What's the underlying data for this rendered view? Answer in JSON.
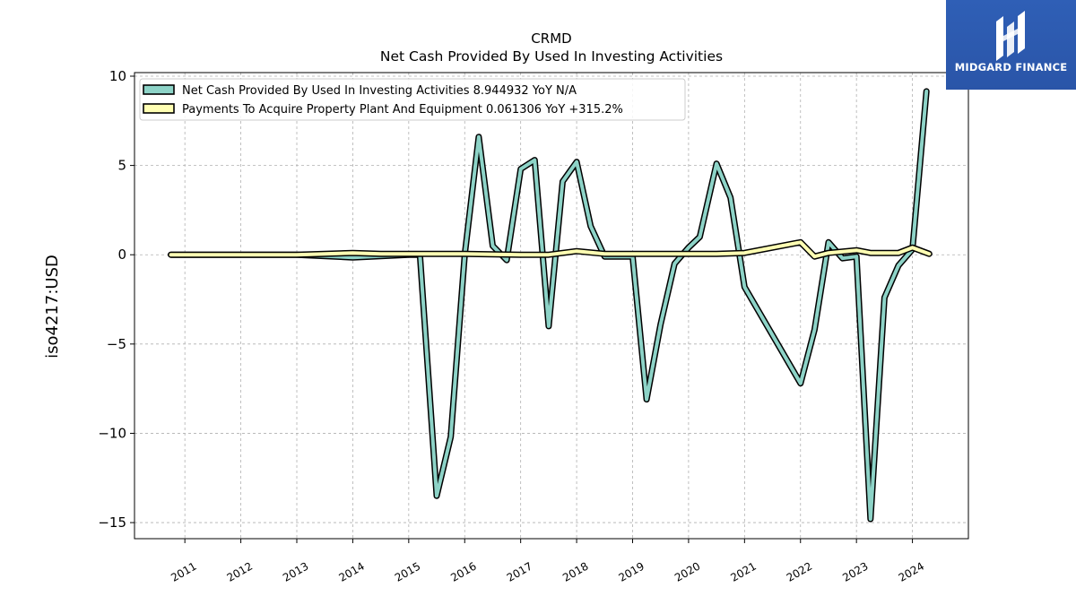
{
  "chart_data": {
    "type": "line",
    "title": "CRMD",
    "subtitle": "Net Cash Provided By Used In Investing Activities",
    "ylabel": "iso4217:USD",
    "xlabel": "",
    "ylim": [
      -15.9,
      10.2
    ],
    "xlim": [
      2010.1,
      2025.0
    ],
    "yticks": [
      10,
      5,
      0,
      -5,
      -10,
      -15
    ],
    "ytick_labels": [
      "10",
      "5",
      "0",
      "−5",
      "−10",
      "−15"
    ],
    "xticks": [
      2011,
      2012,
      2013,
      2014,
      2015,
      2016,
      2017,
      2018,
      2019,
      2020,
      2021,
      2022,
      2023,
      2024
    ],
    "xtick_labels": [
      "2011",
      "2012",
      "2013",
      "2014",
      "2015",
      "2016",
      "2017",
      "2018",
      "2019",
      "2020",
      "2021",
      "2022",
      "2023",
      "2024"
    ],
    "grid": true,
    "legend_position": "top-left",
    "series": [
      {
        "name": "Net Cash Provided By Used In Investing Activities  8.944932 YoY N/A",
        "color": "#8dd3c7",
        "points": [
          [
            2010.75,
            0.0
          ],
          [
            2013.0,
            0.0
          ],
          [
            2014.0,
            -0.15
          ],
          [
            2015.0,
            0.0
          ],
          [
            2015.2,
            0.0
          ],
          [
            2015.5,
            -13.5
          ],
          [
            2015.75,
            -10.2
          ],
          [
            2016.0,
            0.0
          ],
          [
            2016.25,
            6.6
          ],
          [
            2016.5,
            0.5
          ],
          [
            2016.75,
            -0.3
          ],
          [
            2017.0,
            4.8
          ],
          [
            2017.25,
            5.3
          ],
          [
            2017.5,
            -4.0
          ],
          [
            2017.75,
            4.1
          ],
          [
            2018.0,
            5.2
          ],
          [
            2018.25,
            1.6
          ],
          [
            2018.5,
            -0.1
          ],
          [
            2019.0,
            -0.1
          ],
          [
            2019.25,
            -8.1
          ],
          [
            2019.5,
            -3.9
          ],
          [
            2019.75,
            -0.5
          ],
          [
            2020.0,
            0.4
          ],
          [
            2020.2,
            1.0
          ],
          [
            2020.5,
            5.1
          ],
          [
            2020.75,
            3.2
          ],
          [
            2021.0,
            -1.8
          ],
          [
            2022.0,
            -7.2
          ],
          [
            2022.25,
            -4.2
          ],
          [
            2022.5,
            0.7
          ],
          [
            2022.75,
            -0.2
          ],
          [
            2023.0,
            -0.1
          ],
          [
            2023.25,
            -14.8
          ],
          [
            2023.5,
            -2.4
          ],
          [
            2023.75,
            -0.6
          ],
          [
            2024.0,
            0.3
          ],
          [
            2024.25,
            9.15
          ]
        ]
      },
      {
        "name": "Payments To Acquire Property Plant And Equipment  0.061306 YoY +315.2%",
        "color": "#ffffb3",
        "points": [
          [
            2010.75,
            0.0
          ],
          [
            2013.0,
            0.0
          ],
          [
            2014.0,
            0.1
          ],
          [
            2014.5,
            0.05
          ],
          [
            2015.0,
            0.05
          ],
          [
            2016.0,
            0.05
          ],
          [
            2017.0,
            0.0
          ],
          [
            2017.5,
            0.0
          ],
          [
            2018.0,
            0.2
          ],
          [
            2018.5,
            0.05
          ],
          [
            2019.0,
            0.05
          ],
          [
            2020.0,
            0.05
          ],
          [
            2020.5,
            0.05
          ],
          [
            2021.0,
            0.1
          ],
          [
            2022.0,
            0.7
          ],
          [
            2022.25,
            -0.1
          ],
          [
            2022.5,
            0.1
          ],
          [
            2023.0,
            0.25
          ],
          [
            2023.25,
            0.1
          ],
          [
            2023.75,
            0.1
          ],
          [
            2024.0,
            0.4
          ],
          [
            2024.3,
            0.05
          ]
        ]
      }
    ]
  },
  "logo": {
    "text": "MIDGARD FINANCE"
  }
}
